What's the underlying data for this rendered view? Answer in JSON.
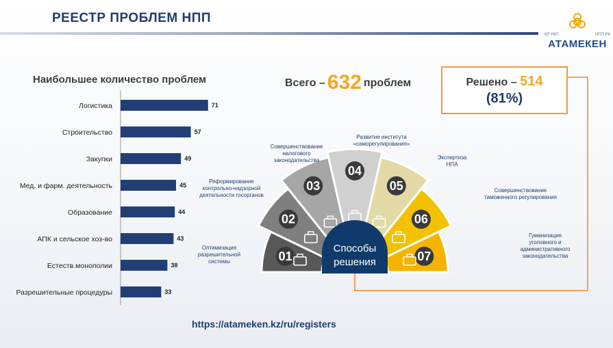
{
  "header": {
    "title": "РЕЕСТР ПРОБЛЕМ НПП",
    "logo": {
      "name": "АТАМЕКЕН",
      "sub_left": "ҚР ҰКП",
      "sub_right": "НПП РК"
    }
  },
  "left_panel": {
    "heading": "Наибольшее количество проблем"
  },
  "chart_data": {
    "type": "bar",
    "orientation": "horizontal",
    "title": "Наибольшее количество проблем",
    "categories": [
      "Логистика",
      "Строительство",
      "Закупки",
      "Мед. и фарм. деятельность",
      "Образование",
      "АПК и сельское хоз-во",
      "Естеств.монополии",
      "Разрешительные процедуры"
    ],
    "values": [
      71,
      57,
      49,
      45,
      44,
      43,
      38,
      33
    ],
    "xlim": [
      0,
      75
    ],
    "color": "#213f75",
    "grid": false,
    "legend": "none"
  },
  "total": {
    "prefix": "Всего –",
    "number": "632",
    "suffix": "проблем"
  },
  "solved": {
    "prefix": "Решено –",
    "number": "514",
    "percent": "(81%)"
  },
  "center_label": {
    "line1": "Способы",
    "line2": "решения"
  },
  "segments": [
    {
      "num": "01",
      "color": "#595959",
      "icon": "briefcase-icon",
      "label": [
        "Оптимизация",
        "разрешительной",
        "системы"
      ]
    },
    {
      "num": "02",
      "color": "#7f7f7f",
      "icon": "presentation-icon",
      "label": [
        "Реформирование",
        "контрольно-надзорной",
        "деятельности госорганов"
      ]
    },
    {
      "num": "03",
      "color": "#a6a6a6",
      "icon": "books-icon",
      "label": [
        "Совершенствование",
        "налогового",
        "законодательства"
      ]
    },
    {
      "num": "04",
      "color": "#d0d0d0",
      "icon": "handshake-icon",
      "label": [
        "Развитие института",
        "«саморегулирования»"
      ]
    },
    {
      "num": "05",
      "color": "#e3d9a6",
      "icon": "document-icon",
      "label": [
        "Экспертиза",
        "НПА"
      ]
    },
    {
      "num": "06",
      "color": "#f2c200",
      "icon": "checklist-icon",
      "label": [
        "Совершенствование",
        "таможенного регулирования"
      ]
    },
    {
      "num": "07",
      "color": "#f5b400",
      "icon": "lecturer-icon",
      "label": [
        "Гуманизация",
        "уголовного и",
        "административного",
        "законодательства"
      ]
    }
  ],
  "footer": {
    "url": "https://atameken.kz/ru/registers"
  },
  "colors": {
    "navy": "#1f3c6e",
    "orange": "#f09a3e",
    "gold": "#f5a623",
    "dark_blue": "#0f3a6b"
  }
}
